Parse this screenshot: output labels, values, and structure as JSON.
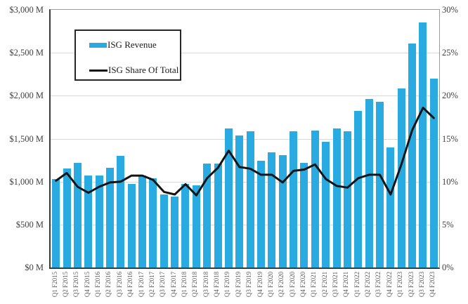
{
  "chart_data": {
    "type": "bar+line combo",
    "categories": [
      "Q1 F2015",
      "Q2 F2015",
      "Q3 F2015",
      "Q4 F2015",
      "Q1 F2016",
      "Q2 F2016",
      "Q3 F2016",
      "Q4 F2016",
      "Q1 F2017",
      "Q2 F2017",
      "Q3 F2017",
      "Q4 F2017",
      "Q1 F2018",
      "Q2 F2018",
      "Q3 F2018",
      "Q4 F2018",
      "Q1 F2019",
      "Q2 F2019",
      "Q3 F2019",
      "Q4 F2019",
      "Q1 F2020",
      "Q2 F2020",
      "Q3 F2020",
      "Q4 F2020",
      "Q1 F2021",
      "Q2 F2021",
      "Q3 F2021",
      "Q4 F2021",
      "Q1 F2022",
      "Q2 F2022",
      "Q3 F2022",
      "Q4 F2022",
      "Q1 F2023",
      "Q2 F2023",
      "Q3 F2023",
      "Q4 F2023"
    ],
    "series": [
      {
        "name": "ISG Revenue",
        "type": "bar",
        "axis": "left",
        "unit": "$M",
        "color": "#29ABE2",
        "values": [
          1030,
          1150,
          1215,
          1070,
          1075,
          1160,
          1300,
          970,
          1075,
          1035,
          850,
          830,
          975,
          960,
          1210,
          1210,
          1620,
          1535,
          1585,
          1240,
          1340,
          1310,
          1590,
          1215,
          1595,
          1465,
          1620,
          1590,
          1820,
          1965,
          1930,
          1395,
          2085,
          2610,
          2850,
          2200
        ]
      },
      {
        "name": "ISG Share Of Total",
        "type": "line",
        "axis": "right",
        "unit": "%",
        "color": "#141414",
        "values": [
          10.1,
          11.0,
          9.4,
          8.7,
          9.4,
          9.9,
          10.0,
          10.7,
          10.7,
          10.2,
          8.8,
          8.5,
          9.7,
          8.4,
          10.4,
          11.6,
          13.6,
          11.7,
          11.5,
          10.8,
          10.8,
          9.9,
          11.25,
          11.4,
          12.0,
          10.3,
          9.5,
          9.3,
          10.4,
          10.8,
          10.8,
          8.5,
          12.0,
          16.0,
          18.6,
          17.4
        ]
      }
    ],
    "left_axis": {
      "min": 0,
      "max": 3000,
      "step": 500,
      "tick_labels": [
        "$3,000 M",
        "$2,500 M",
        "$2,000 M",
        "$1,500 M",
        "$1,000 M",
        "$500 M",
        "$0 M"
      ]
    },
    "right_axis": {
      "min": 0,
      "max": 30,
      "step": 5,
      "tick_labels": [
        "30%",
        "25%",
        "20%",
        "15%",
        "10%",
        "5%",
        "0%"
      ]
    },
    "grid": true,
    "legend_position": "top-left",
    "legend": {
      "revenue_label": "ISG Revenue",
      "share_label": "ISG Share Of Total"
    }
  }
}
